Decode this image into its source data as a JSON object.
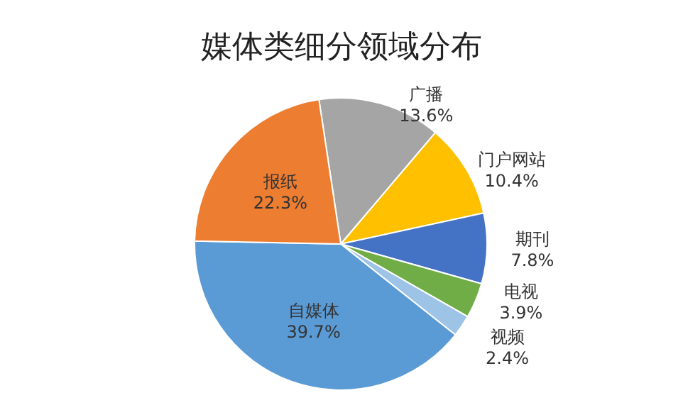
{
  "chart_data": {
    "type": "pie",
    "title": "媒体类细分领域分布",
    "categories": [
      "广播",
      "门户网站",
      "期刊",
      "电视",
      "视频",
      "自媒体",
      "报纸"
    ],
    "values": [
      13.6,
      10.4,
      7.8,
      3.9,
      2.4,
      39.7,
      22.3
    ],
    "colors": [
      "#a5a5a5",
      "#ffc000",
      "#4472c4",
      "#70ad47",
      "#9dc3e6",
      "#5b9bd5",
      "#ed7d31"
    ],
    "value_labels": [
      "13.6%",
      "10.4%",
      "7.8%",
      "3.9%",
      "2.4%",
      "39.7%",
      "22.3%"
    ]
  }
}
